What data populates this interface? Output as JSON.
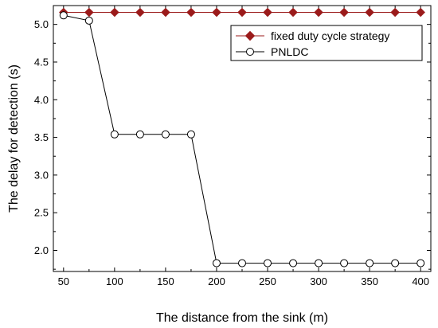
{
  "chart_data": {
    "type": "line",
    "title": "",
    "xlabel": "The distance from the sink (m)",
    "ylabel": "The delay for detection (s)",
    "xlim": [
      40,
      410
    ],
    "ylim": [
      1.72,
      5.25
    ],
    "xticks": [
      50,
      100,
      150,
      200,
      250,
      300,
      350,
      400
    ],
    "yticks": [
      2.0,
      2.5,
      3.0,
      3.5,
      4.0,
      4.5,
      5.0
    ],
    "ytick_labels": [
      "2.0",
      "2.5",
      "3.0",
      "3.5",
      "4.0",
      "4.5",
      "5.0"
    ],
    "grid": false,
    "legend_position": "top-right",
    "x": [
      50,
      75,
      100,
      125,
      150,
      175,
      200,
      225,
      250,
      275,
      300,
      325,
      350,
      375,
      400
    ],
    "series": [
      {
        "name": "fixed duty cycle strategy",
        "color": "#9b1b1b",
        "marker": "diamond-filled",
        "values": [
          5.16,
          5.16,
          5.16,
          5.16,
          5.16,
          5.16,
          5.16,
          5.16,
          5.16,
          5.16,
          5.16,
          5.16,
          5.16,
          5.16,
          5.16
        ]
      },
      {
        "name": "PNLDC",
        "color": "#000000",
        "marker": "circle-open",
        "values": [
          5.12,
          5.05,
          3.54,
          3.54,
          3.54,
          3.54,
          1.83,
          1.83,
          1.83,
          1.83,
          1.83,
          1.83,
          1.83,
          1.83,
          1.83
        ]
      }
    ]
  }
}
